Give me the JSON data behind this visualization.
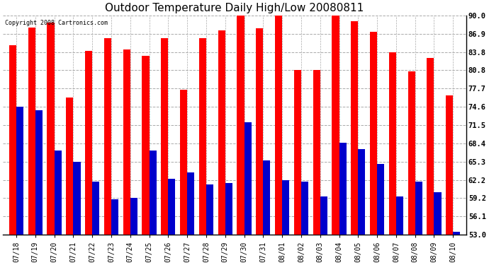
{
  "title": "Outdoor Temperature Daily High/Low 20080811",
  "copyright": "Copyright 2008 Cartronics.com",
  "dates": [
    "07/18",
    "07/19",
    "07/20",
    "07/21",
    "07/22",
    "07/23",
    "07/24",
    "07/25",
    "07/26",
    "07/27",
    "07/28",
    "07/29",
    "07/30",
    "07/31",
    "08/01",
    "08/02",
    "08/03",
    "08/04",
    "08/05",
    "08/06",
    "08/07",
    "08/08",
    "08/09",
    "08/10"
  ],
  "highs": [
    85.0,
    88.0,
    88.8,
    76.2,
    84.0,
    86.2,
    84.2,
    83.2,
    86.2,
    77.5,
    86.2,
    87.5,
    90.0,
    87.8,
    90.0,
    80.8,
    80.8,
    90.0,
    89.0,
    87.2,
    83.8,
    80.5,
    82.8,
    76.5
  ],
  "lows": [
    74.6,
    74.0,
    67.2,
    65.3,
    62.0,
    59.0,
    59.2,
    67.2,
    62.5,
    63.5,
    61.5,
    61.8,
    72.0,
    65.5,
    62.2,
    62.0,
    59.5,
    68.5,
    67.5,
    65.0,
    59.5,
    62.0,
    60.2,
    53.5
  ],
  "high_color": "#ff0000",
  "low_color": "#0000cc",
  "bg_color": "#ffffff",
  "grid_color": "#aaaaaa",
  "title_fontsize": 11,
  "ytick_labels": [
    "90.0",
    "86.9",
    "83.8",
    "80.8",
    "77.7",
    "74.6",
    "71.5",
    "68.4",
    "65.3",
    "62.2",
    "59.2",
    "56.1",
    "53.0"
  ],
  "yticks": [
    90.0,
    86.9,
    83.8,
    80.8,
    77.7,
    74.6,
    71.5,
    68.4,
    65.3,
    62.2,
    59.2,
    56.1,
    53.0
  ],
  "ymin": 53.0,
  "ymax": 90.0,
  "bar_bottom": 53.0
}
